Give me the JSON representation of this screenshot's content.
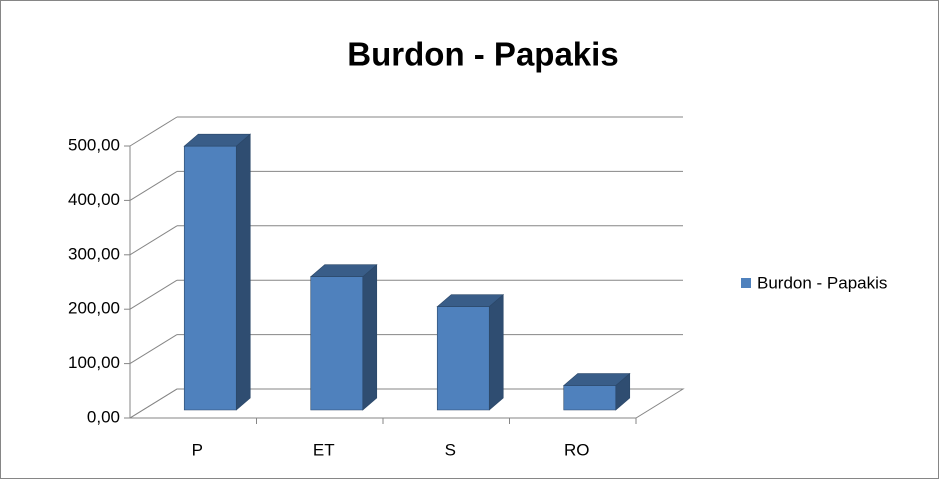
{
  "chart_data": {
    "type": "bar3d",
    "title": "Burdon - Papakis",
    "categories": [
      "P",
      "ET",
      "S",
      "RO"
    ],
    "series": [
      {
        "name": "Burdon - Papakis",
        "color": "#4f81bd",
        "values": [
          485,
          245,
          190,
          45
        ]
      }
    ],
    "ylim": [
      0,
      500
    ],
    "yticks": [
      {
        "value": 0,
        "label": "0,00"
      },
      {
        "value": 100,
        "label": "100,00"
      },
      {
        "value": 200,
        "label": "200,00"
      },
      {
        "value": 300,
        "label": "300,00"
      },
      {
        "value": 400,
        "label": "400,00"
      },
      {
        "value": 500,
        "label": "500,00"
      }
    ],
    "grid": true,
    "legend": "right"
  }
}
